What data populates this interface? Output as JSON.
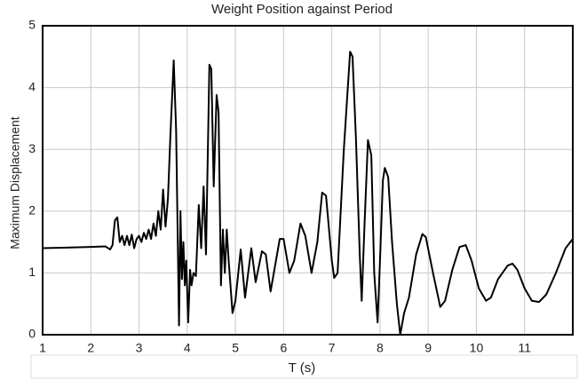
{
  "chart_data": {
    "type": "line",
    "title": "Weight Position against Period",
    "x_label": "T (s)",
    "y_label": "Maximum Displacement",
    "color": "#000000",
    "grid": true,
    "xlim": [
      1,
      12
    ],
    "ylim": [
      0,
      5
    ],
    "xticks": [
      1,
      2,
      3,
      4,
      5,
      6,
      7,
      8,
      9,
      10,
      11
    ],
    "yticks": [
      0,
      1,
      2,
      3,
      4,
      5
    ],
    "x": [
      1.0,
      1.5,
      2.0,
      2.3,
      2.4,
      2.45,
      2.5,
      2.55,
      2.6,
      2.65,
      2.7,
      2.75,
      2.8,
      2.85,
      2.9,
      2.95,
      3.0,
      3.05,
      3.1,
      3.15,
      3.2,
      3.25,
      3.3,
      3.35,
      3.4,
      3.45,
      3.5,
      3.55,
      3.6,
      3.65,
      3.72,
      3.77,
      3.83,
      3.86,
      3.89,
      3.92,
      3.95,
      3.98,
      4.02,
      4.06,
      4.09,
      4.13,
      4.18,
      4.24,
      4.29,
      4.34,
      4.39,
      4.46,
      4.5,
      4.55,
      4.61,
      4.65,
      4.7,
      4.74,
      4.78,
      4.82,
      4.86,
      4.94,
      5.0,
      5.11,
      5.2,
      5.33,
      5.42,
      5.55,
      5.63,
      5.73,
      5.92,
      6.0,
      6.12,
      6.22,
      6.35,
      6.45,
      6.58,
      6.7,
      6.8,
      6.88,
      7.0,
      7.05,
      7.12,
      7.25,
      7.38,
      7.43,
      7.5,
      7.58,
      7.62,
      7.68,
      7.75,
      7.82,
      7.88,
      7.95,
      8.0,
      8.06,
      8.1,
      8.17,
      8.25,
      8.35,
      8.42,
      8.5,
      8.6,
      8.75,
      8.88,
      8.95,
      9.1,
      9.25,
      9.35,
      9.5,
      9.65,
      9.78,
      9.9,
      10.05,
      10.2,
      10.3,
      10.45,
      10.65,
      10.75,
      10.85,
      11.0,
      11.15,
      11.3,
      11.45,
      11.65,
      11.85,
      12.0
    ],
    "values": [
      1.4,
      1.41,
      1.42,
      1.43,
      1.38,
      1.45,
      1.85,
      1.9,
      1.5,
      1.6,
      1.45,
      1.6,
      1.45,
      1.62,
      1.4,
      1.55,
      1.6,
      1.5,
      1.65,
      1.55,
      1.7,
      1.55,
      1.8,
      1.6,
      2.0,
      1.7,
      2.35,
      1.75,
      2.2,
      3.2,
      4.44,
      3.3,
      0.15,
      2.0,
      0.9,
      1.5,
      0.8,
      1.2,
      0.2,
      1.05,
      0.8,
      1.0,
      0.95,
      2.1,
      1.4,
      2.4,
      1.3,
      4.37,
      4.3,
      2.4,
      3.88,
      3.6,
      0.8,
      1.7,
      1.0,
      1.7,
      1.2,
      0.35,
      0.55,
      1.38,
      0.6,
      1.4,
      0.85,
      1.35,
      1.3,
      0.7,
      1.55,
      1.55,
      1.0,
      1.2,
      1.8,
      1.6,
      1.0,
      1.5,
      2.3,
      2.25,
      1.2,
      0.92,
      1.0,
      3.0,
      4.58,
      4.5,
      3.2,
      1.3,
      0.55,
      1.8,
      3.15,
      2.9,
      1.0,
      0.2,
      1.2,
      2.5,
      2.7,
      2.55,
      1.5,
      0.5,
      0.0,
      0.35,
      0.6,
      1.3,
      1.63,
      1.58,
      1.0,
      0.45,
      0.55,
      1.05,
      1.42,
      1.45,
      1.2,
      0.75,
      0.55,
      0.6,
      0.9,
      1.12,
      1.15,
      1.05,
      0.75,
      0.55,
      0.53,
      0.65,
      1.0,
      1.4,
      1.55
    ]
  }
}
